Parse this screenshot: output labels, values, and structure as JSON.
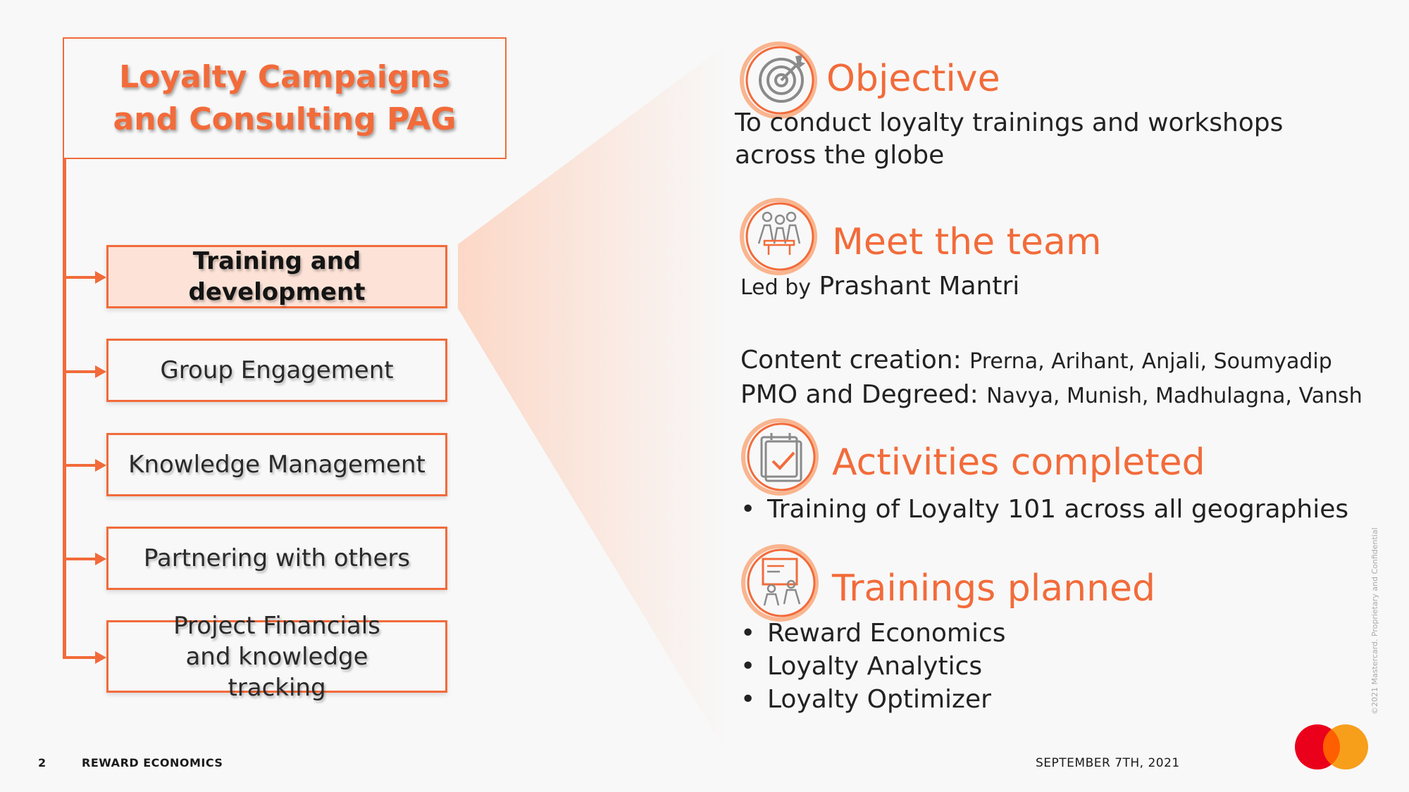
{
  "title": "Loyalty Campaigns and Consulting PAG",
  "branches": [
    {
      "label": "Training and development",
      "active": true
    },
    {
      "label": "Group Engagement",
      "active": false
    },
    {
      "label": "Knowledge Management",
      "active": false
    },
    {
      "label": "Partnering with others",
      "active": false
    },
    {
      "label": "Project Financials and knowledge tracking",
      "active": false
    }
  ],
  "objective": {
    "icon": "target-icon",
    "title": "Objective",
    "text": "To conduct loyalty trainings and workshops across the globe"
  },
  "team": {
    "icon": "team-icon",
    "title": "Meet the team",
    "led_by_label": "Led by",
    "led_by_name": "Prashant Mantri",
    "content_label": "Content creation:",
    "content_names": "Prerna, Arihant, Anjali, Soumyadip",
    "pmo_label": "PMO and Degreed:",
    "pmo_names": "Navya, Munish, Madhulagna, Vansh"
  },
  "activities": {
    "icon": "calendar-check-icon",
    "title": "Activities completed",
    "items": [
      "Training of Loyalty 101 across all geographies"
    ]
  },
  "trainings": {
    "icon": "presentation-icon",
    "title": "Trainings planned",
    "items": [
      "Reward Economics",
      "Loyalty Analytics",
      "Loyalty Optimizer"
    ]
  },
  "footer": {
    "page_number": "2",
    "section": "REWARD ECONOMICS",
    "date": "SEPTEMBER 7TH, 2021",
    "confidential": "©2021 Mastercard. Proprietary and Confidential"
  },
  "colors": {
    "accent": "#f26b3a",
    "active_fill": "#fde3d7",
    "logo_red": "#eb001b",
    "logo_orange": "#f79e1b"
  }
}
